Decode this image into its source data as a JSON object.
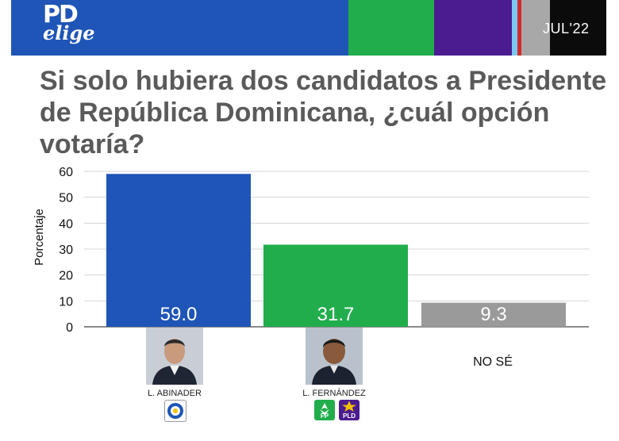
{
  "header": {
    "logo_top": "PD",
    "logo_bottom": "elige",
    "date": "JUL'22",
    "colors": [
      "#1f55b7",
      "#21ad4c",
      "#4b1c8f",
      "#7ac7f0",
      "#d32a2a",
      "#a8a8a8",
      "#0b0b0b"
    ]
  },
  "title": "Si solo hubiera dos candidatos a Presidente de República Dominicana, ¿cuál opción votaría?",
  "chart_data": {
    "type": "bar",
    "categories": [
      "L. ABINADER",
      "L. FERNÁNDEZ",
      "NO SÉ"
    ],
    "values": [
      59.0,
      31.7,
      9.3
    ],
    "value_labels": [
      "59.0",
      "31.7",
      "9.3"
    ],
    "colors": [
      "#1f55b7",
      "#21ad4c",
      "#9a9a9a"
    ],
    "ylabel": "Porcentaje",
    "ylim": [
      0,
      60
    ],
    "yticks": [
      0,
      10,
      20,
      30,
      40,
      50,
      60
    ],
    "grid": true
  },
  "candidates": [
    {
      "name": "L. ABINADER",
      "parties": [
        "PRM"
      ]
    },
    {
      "name": "L. FERNÁNDEZ",
      "parties": [
        "FP",
        "PLD"
      ]
    },
    {
      "name": "NO SÉ",
      "parties": []
    }
  ]
}
